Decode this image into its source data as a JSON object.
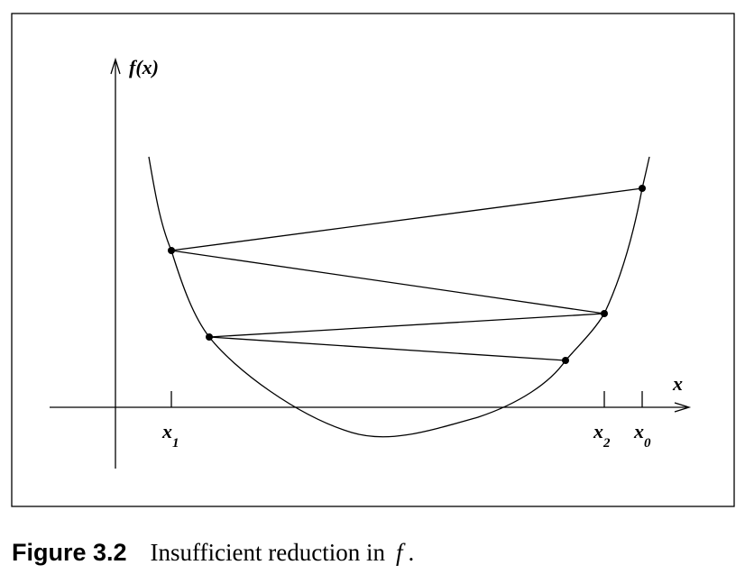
{
  "axes": {
    "y_label": "f(x)",
    "x_label": "x"
  },
  "ticks": [
    {
      "id": "x1",
      "base": "x",
      "sub": "1"
    },
    {
      "id": "x2",
      "base": "x",
      "sub": "2"
    },
    {
      "id": "x0",
      "base": "x",
      "sub": "0"
    }
  ],
  "caption": {
    "number": "Figure 3.2",
    "text": "Insufficient reduction in",
    "symbol": "f",
    "end": "."
  }
}
